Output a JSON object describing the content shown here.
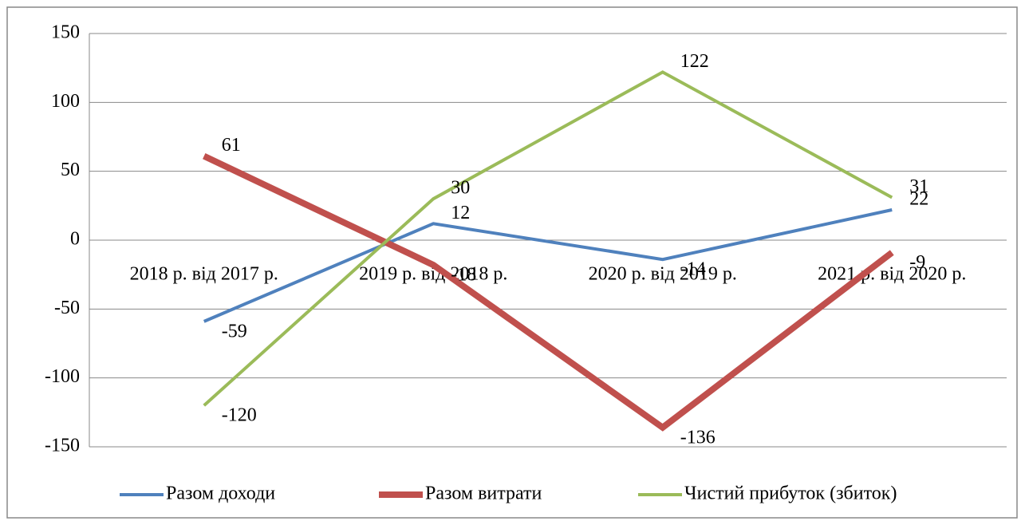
{
  "chart_data": {
    "type": "line",
    "categories": [
      "2018 р. від 2017 р.",
      "2019 р. від 2018 р.",
      "2020 р. від 2019 р.",
      "2021 р. від 2020 р."
    ],
    "series": [
      {
        "name": "Разом доходи",
        "color": "#4f81bd",
        "values": [
          -59,
          12,
          -14,
          22
        ]
      },
      {
        "name": "Разом витрати",
        "color": "#c0504d",
        "values": [
          61,
          -18,
          -136,
          -9
        ]
      },
      {
        "name": "Чистий прибуток (збиток)",
        "color": "#9bbb59",
        "values": [
          -120,
          30,
          122,
          31
        ]
      }
    ],
    "ylim": [
      -150,
      150
    ],
    "yticks": [
      -150,
      -100,
      -50,
      0,
      50,
      100,
      150
    ],
    "grid": true
  }
}
